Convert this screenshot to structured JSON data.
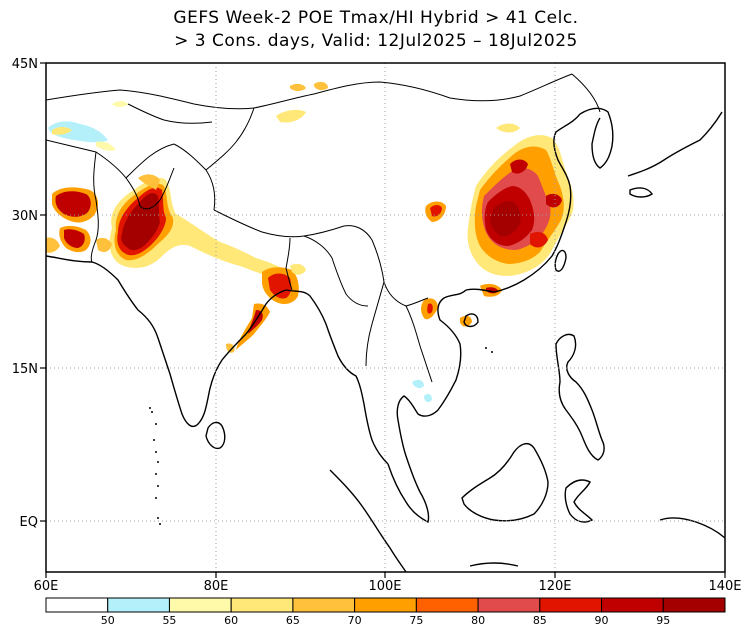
{
  "title": {
    "line1": "GEFS Week-2 POE Tmax/HI Hybrid > 41 Celc.",
    "line2": "> 3 Cons. days, Valid: 12Jul2025 – 18Jul2025"
  },
  "axes": {
    "lat_labels": [
      "45N",
      "30N",
      "15N",
      "EQ"
    ],
    "lon_labels": [
      "60E",
      "80E",
      "100E",
      "120E",
      "140E"
    ]
  },
  "colorbar": {
    "levels": [
      "50",
      "55",
      "60",
      "65",
      "70",
      "75",
      "80",
      "85",
      "90",
      "95"
    ],
    "colors": [
      "#ffffff",
      "#b4f0fa",
      "#fffaaa",
      "#ffe878",
      "#ffc03c",
      "#ffa000",
      "#ff6000",
      "#e14b4b",
      "#e11400",
      "#c00000",
      "#a50000"
    ]
  },
  "map_colors": {
    "land_line": "#000000",
    "grid": "#a0a0a0"
  }
}
